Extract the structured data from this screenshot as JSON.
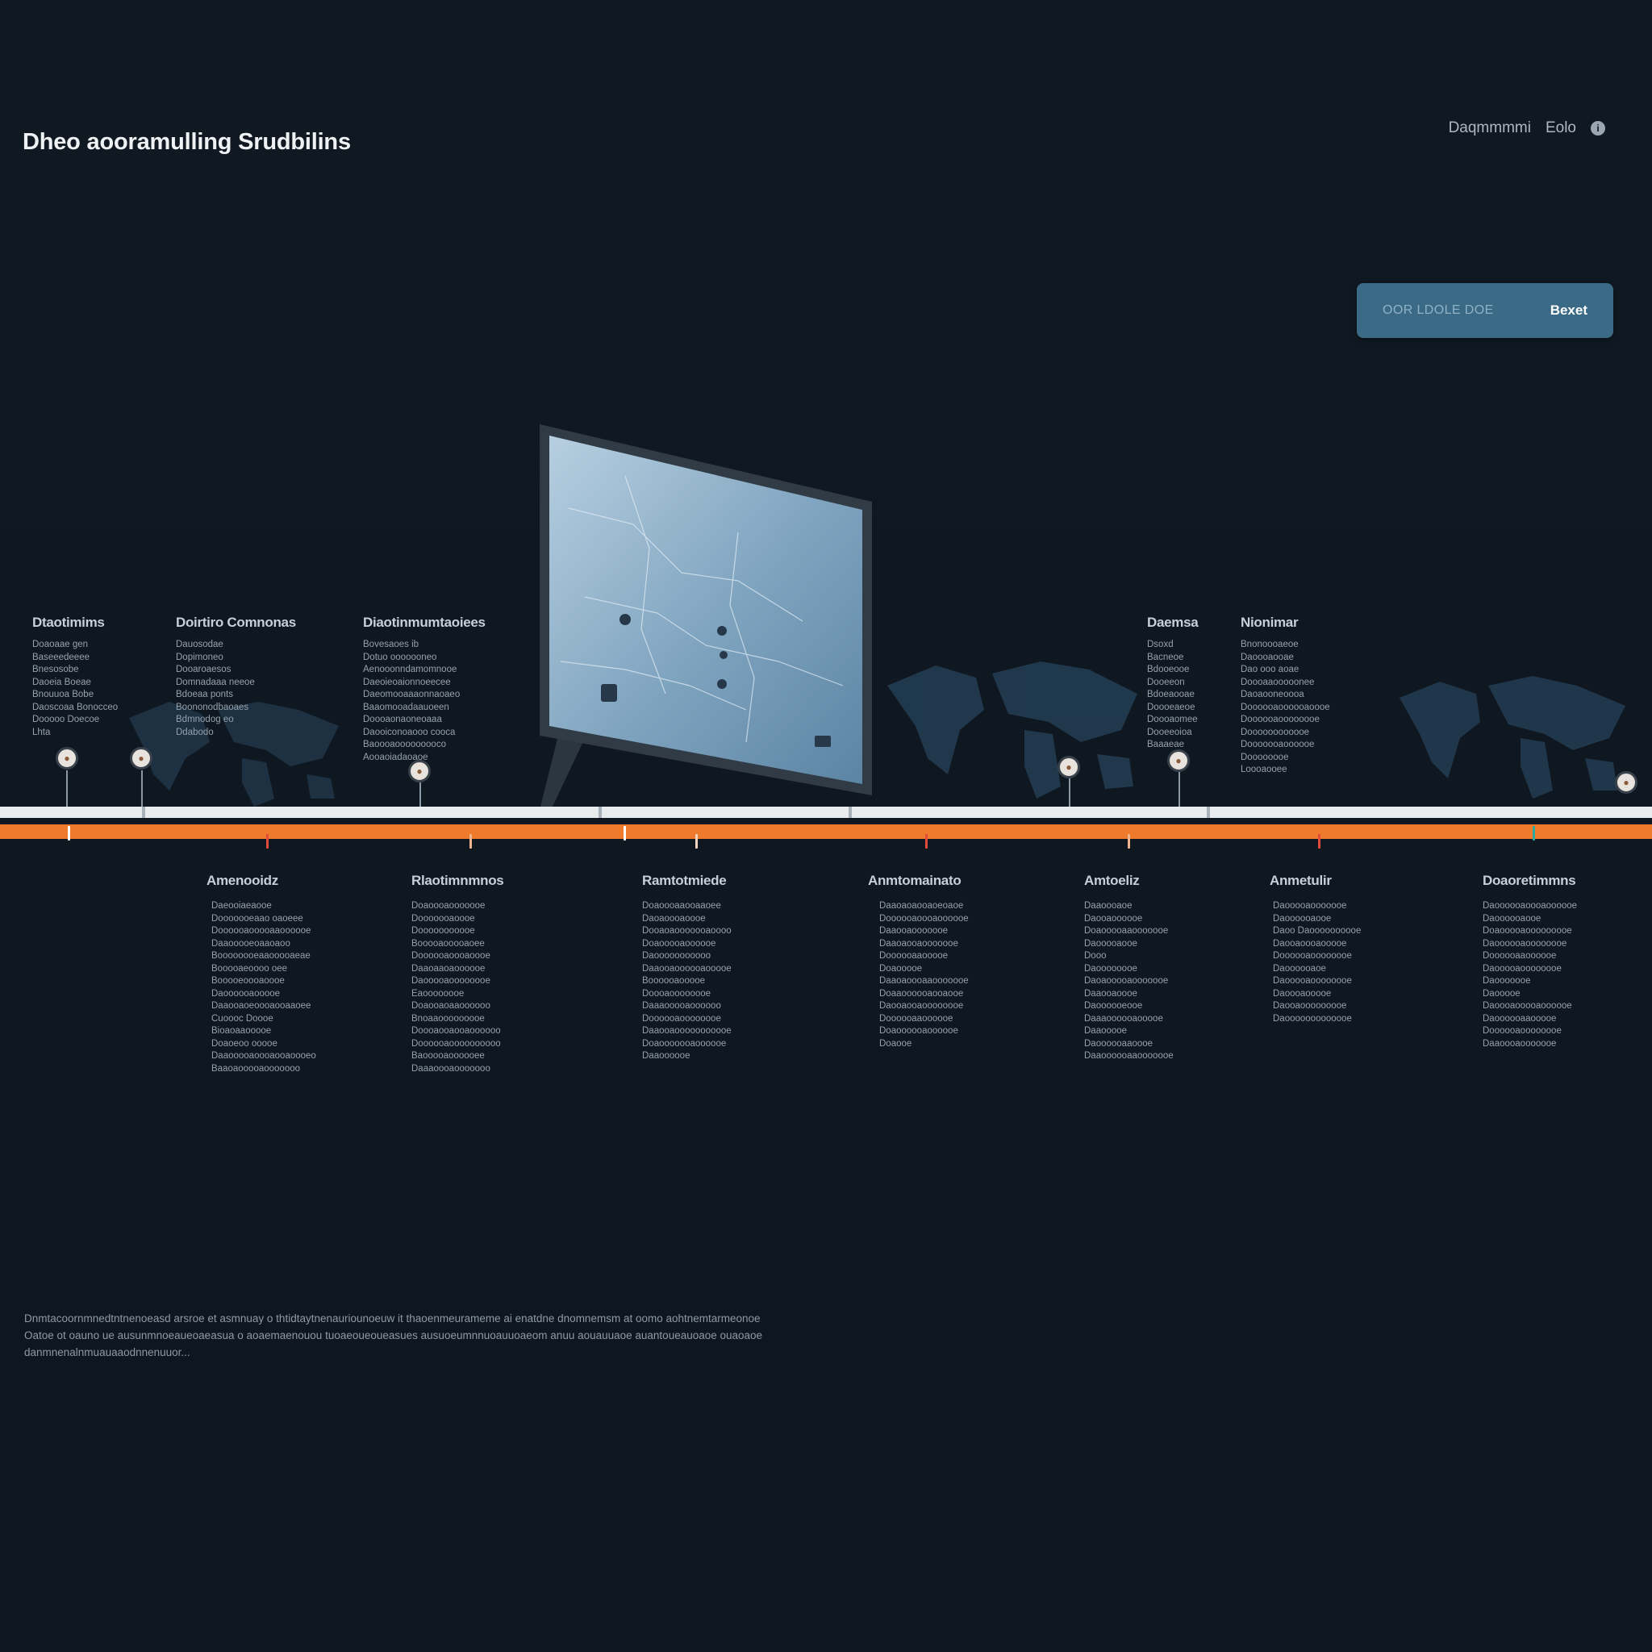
{
  "header": {
    "title": "Dheo aooramulling Srudbilins",
    "nav_link": "Daqmmmmi",
    "nav_link_2": "Eolo",
    "info_icon": "info-icon"
  },
  "cta": {
    "hint": "OOR LDOLE DOE",
    "button": "Bexet"
  },
  "upper_events": [
    {
      "heading": "Dtaotimims",
      "lines": [
        "Doaoaae gen",
        "Baseeedeeee",
        "Bnesosobe",
        "Daoeia Boeae",
        "Bnouuoa Bobe",
        "Daoscoaa Bonocceo",
        "Dooooo Doecoe",
        "Lhta"
      ]
    },
    {
      "heading": "Doirtiro Comnonas",
      "lines": [
        "Dauosodae",
        "Dopimoneo",
        "Dooaroaesos",
        "Domnadaaa neeoe",
        "Bdoeaa ponts",
        "Boononodbaoaes",
        "Bdmnodog eo",
        "Ddabodo"
      ]
    },
    {
      "heading": "Diaotinmumtaoiees",
      "lines": [
        "Bovesaoes ib",
        "Dotuo ooooooneo",
        "Aenooonndamomnooe",
        "Daeoieoaionnoeecee",
        "Daeomooaaaonnaoaeo",
        "Baaomooadaauoeen",
        "Doooaonaoneoaaa",
        "Daooiconoaooo cooca",
        "Baoooaooooooooco",
        "Aooaoiadaoaoe"
      ]
    },
    {
      "heading": "Daemsa",
      "lines": [
        "Dsoxd",
        "Bacneoe",
        "Bdooeooe",
        "Dooeeon",
        "Bdoeaooae",
        "Doooeaeoe",
        "Doooaomee",
        "Dooeeoioa",
        "Baaaeae"
      ]
    },
    {
      "heading": "Nionimar",
      "lines": [
        "Bnonoooaeoe",
        "Daoooaooae",
        "Dao ooo aoae",
        "Doooaaooooonee",
        "Daoaooneoooa",
        "Doooooaoooooaoooe",
        "Doooooaoooooooe",
        "Doooooooooooe",
        "Dooooooaoooooe",
        "Doooooooe",
        "Loooaooee"
      ]
    }
  ],
  "lower_events": [
    {
      "heading": "Amenooidz",
      "lines": [
        "Daeooiaeaooe",
        "Dooooooeaao oaoeee",
        "Doooooaooooaaoooooe",
        "Daaooooeoaaoaoo",
        "Boooooooeaaooooaeae",
        "Booooaeoooo oee",
        "Booooeoooaoooe",
        "Daoooooaooooe",
        "Daaooaoeoooaooaaoee",
        "Cuoooc Doooe",
        "Bioaoaaooooe",
        "Doaoeoo ooooe",
        "Daaooooaoooaooaoooeo",
        "Baaoaooooaooooooo"
      ]
    },
    {
      "heading": "Rlaotimnmnos",
      "lines": [
        "Doaoooaooooooe",
        "Dooooooaoooe",
        "Dooooooooooe",
        "Booooaooooaoee",
        "Doooooaoooaoooe",
        "Daaoaaoaoooooe",
        "Daooooaoooooooe",
        "Eaoooooooe",
        "Doaooaoaaoooooo",
        "Bnoaaooooooooe",
        "Doooaooaooaoooooo",
        "Doooooaoooooooooo",
        "Baooooaoooooee",
        "Daaaoooaooooooo"
      ]
    },
    {
      "heading": "Ramtotmiede",
      "lines": [
        "Doaoooaaooaaoee",
        "Daoaoooaoooe",
        "Dooaoaooooooaoooo",
        "Doaooooaoooooe",
        "Daooooooooooo",
        "Daaooaoooooaooooe",
        "Boooooaooooe",
        "Doooaoooooooe",
        "Daaaooooaoooooo",
        "Doooooaoooooooe",
        "Daaooaooooooooooe",
        "Doaooooooaoooooe",
        "Daaoooooe"
      ]
    },
    {
      "heading": "Anmtomainato",
      "lines": [
        "Daaoaoaooaoeoaoe",
        "Doooooaoooaoooooe",
        "Daaooaooooooe",
        "Daaoaooaooooooe",
        "Doooooaaooooe",
        "Doaooooe",
        "Daaoaoooaaooooooe",
        "Doaaoooooaooaooe",
        "Daooaooaoooooooe",
        "Doooooaaoooooe",
        "Doaoooooaoooooe",
        "Doaooe"
      ]
    },
    {
      "heading": "Amtoeliz",
      "lines": [
        "Daaoooaoe",
        "Daooaoooooe",
        "Doaooooaaooooooe",
        "Daooooaooe",
        "Dooo",
        "Daoooooooe",
        "Daoaooooaooooooe",
        "Daaooaoooe",
        "Daoooooeooe",
        "Daaaoooooaooooe",
        "Daaooooe",
        "Daoooooaaoooe",
        "Daaoooooaaooooooe"
      ]
    },
    {
      "heading": "Anmetulir",
      "lines": [
        "Daooooaooooooe",
        "Daoooooaooe",
        "Daoo Daoooooooooe",
        "Daooaoooaooooe",
        "Doooooaoooooooe",
        "Daoooooaoe",
        "Daooooaoooooooe",
        "Daoooaooooe",
        "Daooaooooooooe",
        "Daooooooooooooe"
      ]
    },
    {
      "heading": "Doaoretimmns",
      "lines": [
        "Daoooooaoooaoooooe",
        "Daoooooaooe",
        "Doaooooaooooooooe",
        "Daoooooaoooooooe",
        "Doooooaaoooooe",
        "Daooooaoooooooe",
        "Daooooooe",
        "Daooooe",
        "Daoooaooooaoooooe",
        "Daoooooaaooooe",
        "Doooooaoooooooe",
        "Daaoooaooooooe"
      ]
    }
  ],
  "footnote": {
    "lines": [
      "Dnmtacoornmnedtntnenoeasd arsroe et asmnuay o thtidtaytnenauriounoeuw it thaoenmeurameme ai enatdne dnomnemsm at oomo aohtnemtarmeonoe",
      "Oatoe ot oauno ue ausunmnoeaueoaeasua o aoaemaenouou tuoaeoueoueasues ausuoeumnnuoauuoaeom anuu aouauuaoe auantoueauoaoe ouaoaoe",
      "danmnenalnmuauaaodnnenuuor..."
    ]
  },
  "colors": {
    "background": "#101922",
    "accent_orange": "#f07a2c",
    "cta_blue": "#3a6a86",
    "track_white": "#e9ecef",
    "tick_teal": "#2aa7a0",
    "tick_red": "#e24a3b"
  },
  "icons": [
    "pin-marker-icon",
    "info-icon",
    "monitor-icon",
    "world-map-icon"
  ]
}
